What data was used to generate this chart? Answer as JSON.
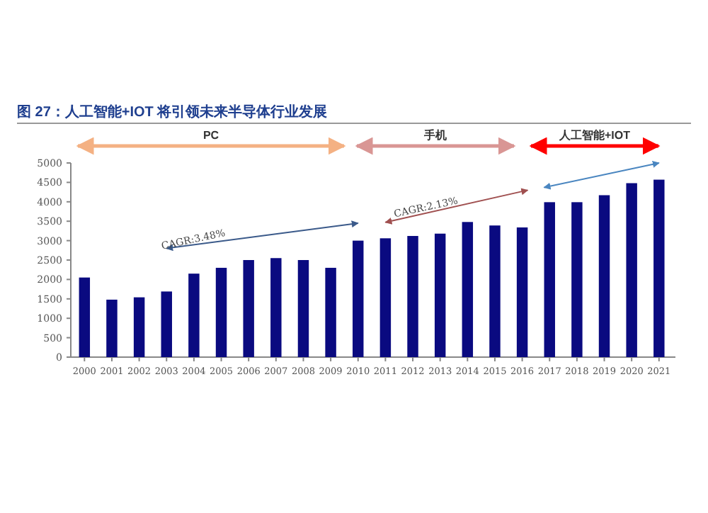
{
  "chart_data": {
    "type": "bar",
    "title": "图 27：人工智能+IOT 将引领未来半导体行业发展",
    "x": [
      2000,
      2001,
      2002,
      2003,
      2004,
      2005,
      2006,
      2007,
      2008,
      2009,
      2010,
      2011,
      2012,
      2013,
      2014,
      2015,
      2016,
      2017,
      2018,
      2019,
      2020,
      2021
    ],
    "series": [
      {
        "color": "#0a0a80",
        "values": [
          2050,
          1480,
          1540,
          1690,
          2150,
          2300,
          2500,
          2550,
          2500,
          2300,
          3000,
          3060,
          3120,
          3180,
          3480,
          3390,
          3340,
          3990,
          3990,
          4170,
          4480,
          4570
        ]
      },
      {
        "type": "line",
        "color": "#3b5a8a",
        "x": [
          2003,
          2010
        ],
        "values": [
          2800,
          3450
        ]
      },
      {
        "type": "line",
        "color": "#a05050",
        "x": [
          2011,
          2016.2
        ],
        "values": [
          3470,
          4300
        ]
      },
      {
        "type": "line",
        "color": "#4a86c0",
        "x": [
          2016.8,
          2021
        ],
        "values": [
          4370,
          5000
        ]
      }
    ],
    "xlim": [
      1999.5,
      2021.6
    ],
    "xticks": [
      2000,
      2001,
      2002,
      2003,
      2004,
      2005,
      2006,
      2007,
      2008,
      2009,
      2010,
      2011,
      2012,
      2013,
      2014,
      2015,
      2016,
      2017,
      2018,
      2019,
      2020,
      2021
    ],
    "ylim": [
      0,
      5000
    ],
    "yticks": [
      0,
      500,
      1000,
      1500,
      2000,
      2500,
      3000,
      3500,
      4000,
      4500,
      5000
    ],
    "annotations": [
      "PC",
      "手机",
      "人工智能+IOT",
      {
        "text": "CAGR:3.48%",
        "x": 2004,
        "y": 2950
      },
      {
        "text": "CAGR:2.13%",
        "x": 2012.5,
        "y": 3780
      }
    ],
    "grid": false
  }
}
